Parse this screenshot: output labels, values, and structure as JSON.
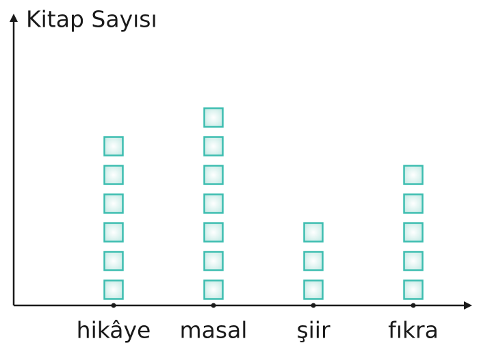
{
  "chart_data": {
    "type": "pictograph",
    "y_label": "Kitap Sayısı",
    "categories": [
      "hikâye",
      "masal",
      "şiir",
      "fıkra"
    ],
    "values": [
      6,
      7,
      3,
      5
    ],
    "color": "#3dbdb0"
  }
}
